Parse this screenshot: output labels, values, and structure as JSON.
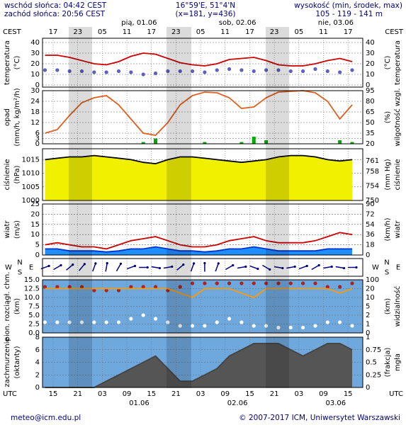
{
  "header": {
    "sunrise": "wschód słońca: 04:42 CEST",
    "sunset": "zachód słońca: 20:56 CEST",
    "coords": "16°59'E, 51°4'N",
    "grid": "(x=181, y=436)",
    "elevation_title": "wysokość (min, środek, max)",
    "elevation": "105 - 119 - 141 m"
  },
  "time_axis": {
    "xlim": [
      12.4,
      90.6
    ],
    "top_unit": "CEST",
    "bottom_unit": "UTC",
    "top_ticks": [
      {
        "value": 15,
        "label": "17"
      },
      {
        "value": 21,
        "label": "23"
      },
      {
        "value": 27,
        "label": "05"
      },
      {
        "value": 33,
        "label": "11"
      },
      {
        "value": 39,
        "label": "17"
      },
      {
        "value": 45,
        "label": "23"
      },
      {
        "value": 51,
        "label": "05"
      },
      {
        "value": 57,
        "label": "11"
      },
      {
        "value": 63,
        "label": "17"
      },
      {
        "value": 69,
        "label": "23"
      },
      {
        "value": 75,
        "label": "05"
      },
      {
        "value": 81,
        "label": "11"
      },
      {
        "value": 87,
        "label": "17"
      }
    ],
    "bottom_ticks": [
      15,
      21,
      {
        "value": 27,
        "label": "03"
      },
      {
        "value": 33,
        "label": "09"
      },
      {
        "value": 39,
        "label": "15"
      },
      {
        "value": 45,
        "label": "21"
      },
      {
        "value": 51,
        "label": "03"
      },
      {
        "value": 57,
        "label": "09"
      },
      {
        "value": 63,
        "label": "15"
      },
      {
        "value": 69,
        "label": "21"
      },
      {
        "value": 75,
        "label": "03"
      },
      {
        "value": 81,
        "label": "09"
      },
      {
        "value": 87,
        "label": "15"
      }
    ],
    "days": [
      {
        "x": 36,
        "top": "pią, 01.06",
        "bottom": "01.06"
      },
      {
        "x": 60,
        "top": "sob, 02.06",
        "bottom": "02.06"
      },
      {
        "x": 84,
        "top": "nie, 03.06",
        "bottom": "03.06"
      }
    ]
  },
  "chart_data": [
    {
      "type": "line",
      "ylabel": [
        "temperatura",
        "(°C)"
      ],
      "y2label": [
        "(°C)",
        "temperatura"
      ],
      "background": "#ffffff",
      "ylim": [
        -2,
        44
      ],
      "yticks": [
        0,
        10,
        20,
        30,
        40
      ],
      "y2lim": [
        -2,
        44
      ],
      "y2ticks": [
        0,
        10,
        20,
        30,
        40
      ],
      "x": [
        13,
        16,
        19,
        22,
        25,
        28,
        31,
        34,
        37,
        40,
        43,
        46,
        49,
        52,
        55,
        58,
        61,
        64,
        67,
        70,
        73,
        76,
        79,
        82,
        85,
        88
      ],
      "series": [
        {
          "color": "#cc0000",
          "style": "line",
          "values": [
            28,
            28,
            26,
            23,
            20,
            19,
            22,
            27,
            30,
            29,
            25,
            21,
            19,
            18,
            20,
            24,
            25,
            26,
            23,
            19,
            18,
            18,
            20,
            23,
            25,
            22
          ]
        },
        {
          "color": "#6060c0",
          "style": "dots",
          "values": [
            14,
            14,
            13,
            13,
            12,
            12,
            13,
            12,
            10,
            11,
            13,
            13,
            13,
            12,
            14,
            15,
            14,
            13,
            14,
            14,
            13,
            13,
            15,
            13,
            12,
            14
          ]
        }
      ]
    },
    {
      "type": "line",
      "ylabel": [
        "opad",
        "(mm/h, kg/m²/h)"
      ],
      "y2label": [
        "(%)",
        "wilgotność wzgl."
      ],
      "background": "#ffffff",
      "y2color": "#cc4400",
      "ylim": [
        0,
        30
      ],
      "yticks": [
        0,
        3,
        6,
        12,
        18,
        24,
        30
      ],
      "y2lim": [
        20,
        95
      ],
      "y2ticks": [
        20,
        35,
        50,
        65,
        80,
        95
      ],
      "x": [
        13,
        16,
        19,
        22,
        25,
        28,
        31,
        34,
        37,
        40,
        43,
        46,
        49,
        52,
        55,
        58,
        61,
        64,
        67,
        70,
        73,
        76,
        79,
        82,
        85,
        88
      ],
      "series": [
        {
          "color": "#00aa00",
          "style": "bars",
          "values": [
            0,
            0,
            0,
            0,
            0,
            0,
            0,
            0,
            1,
            3,
            0,
            0,
            0,
            1,
            0,
            0,
            1,
            4,
            2,
            0,
            0,
            0,
            0,
            0,
            2,
            1
          ]
        },
        {
          "color": "#e06020",
          "style": "line",
          "axis": "y2",
          "values": [
            35,
            40,
            60,
            78,
            85,
            88,
            75,
            55,
            35,
            32,
            50,
            75,
            88,
            93,
            92,
            85,
            70,
            72,
            85,
            93,
            94,
            95,
            92,
            80,
            55,
            75
          ]
        }
      ]
    },
    {
      "type": "line",
      "ylabel": [
        "ciśnienie",
        "(hPa)"
      ],
      "y2label": [
        "(mm Hg)",
        "ciśnienie"
      ],
      "background": "#ffffff",
      "ylim": [
        1000,
        1019
      ],
      "yticks": [
        1000,
        1005,
        1010,
        1015
      ],
      "y2lim": [
        750,
        764.3
      ],
      "y2ticks": [
        750,
        754,
        758,
        761
      ],
      "x": [
        13,
        16,
        19,
        22,
        25,
        28,
        31,
        34,
        37,
        40,
        43,
        46,
        49,
        52,
        55,
        58,
        61,
        64,
        67,
        70,
        73,
        76,
        79,
        82,
        85,
        88
      ],
      "series": [
        {
          "color": "#000000",
          "fill": "#f0f000",
          "style": "area",
          "values": [
            1015,
            1015.5,
            1016,
            1016,
            1016.5,
            1016,
            1015.5,
            1015,
            1014,
            1013.5,
            1015,
            1016,
            1016,
            1015.5,
            1015,
            1014.5,
            1014,
            1014.5,
            1015,
            1016,
            1016.5,
            1016.5,
            1016,
            1015,
            1014.5,
            1015
          ]
        }
      ]
    },
    {
      "type": "line",
      "ylabel": [
        "wiatr",
        "(m/s)"
      ],
      "y2label": [
        "(km/h)",
        "wiatr"
      ],
      "background": "#ffffff",
      "ylim": [
        0,
        25
      ],
      "yticks": [
        0,
        5,
        10,
        15,
        20,
        25
      ],
      "y2lim": [
        0,
        90
      ],
      "y2ticks": [
        0,
        18,
        36,
        54,
        72,
        90
      ],
      "x": [
        13,
        16,
        19,
        22,
        25,
        28,
        31,
        34,
        37,
        40,
        43,
        46,
        49,
        52,
        55,
        58,
        61,
        64,
        67,
        70,
        73,
        76,
        79,
        82,
        85,
        88
      ],
      "series": [
        {
          "color": "#0033cc",
          "fill": "#1f8fff",
          "style": "area",
          "values": [
            3,
            3,
            2,
            2,
            2,
            1.5,
            2,
            3,
            3,
            4,
            3,
            2,
            2,
            1.5,
            2,
            3,
            3,
            4,
            3,
            2,
            2,
            2,
            2,
            3,
            3,
            3
          ]
        },
        {
          "color": "#cc0000",
          "style": "line",
          "values": [
            5,
            6,
            5,
            4,
            4,
            3,
            5,
            7,
            8,
            9,
            7,
            5,
            4,
            4,
            5,
            7,
            8,
            9,
            7,
            6,
            6,
            6,
            7,
            9,
            11,
            10
          ]
        }
      ]
    },
    {
      "type": "wind_direction",
      "compass": [
        "W",
        "N",
        "E",
        "S"
      ],
      "color": "#000080",
      "x": [
        13,
        16,
        19,
        22,
        25,
        28,
        31,
        34,
        37,
        40,
        43,
        46,
        49,
        52,
        55,
        58,
        61,
        64,
        67,
        70,
        73,
        76,
        79,
        82,
        85,
        88
      ],
      "values": [
        250,
        240,
        230,
        220,
        200,
        190,
        210,
        250,
        270,
        280,
        260,
        230,
        200,
        180,
        200,
        240,
        260,
        290,
        300,
        280,
        260,
        250,
        240,
        260,
        280,
        270
      ]
    },
    {
      "type": "line",
      "ylabel": [
        "pion. rozciągł. chm.",
        "(km)"
      ],
      "y2label": [
        "(km)",
        "widzialność"
      ],
      "background": "#6fa8dc",
      "y2color": "#cc5500",
      "ylim": [
        0,
        15
      ],
      "yticks": [
        {
          "value": 0,
          "label": "0.0"
        },
        2.5,
        {
          "value": 5,
          "label": "5.0"
        },
        7.5,
        {
          "value": 10,
          "label": "10.0"
        },
        12.5,
        {
          "value": 15,
          "label": "15.0"
        }
      ],
      "y2scale": "piecewise",
      "y2ticks": [
        0,
        1,
        2,
        5,
        10,
        20,
        100
      ],
      "x": [
        13,
        16,
        19,
        22,
        25,
        28,
        31,
        34,
        37,
        40,
        43,
        46,
        49,
        52,
        55,
        58,
        61,
        64,
        67,
        70,
        73,
        76,
        79,
        82,
        85,
        88
      ],
      "series": [
        {
          "color": "#aa2222",
          "style": "dots",
          "values": [
            13,
            13,
            13,
            13,
            12,
            12,
            12,
            13,
            13,
            13,
            12,
            13,
            14,
            14,
            14,
            14,
            14,
            14,
            14,
            14,
            14,
            14,
            14,
            13,
            13,
            14
          ]
        },
        {
          "color": "#ffffff",
          "style": "dots",
          "values": [
            3,
            3,
            3,
            3,
            3,
            3,
            3,
            4,
            5,
            4,
            3,
            2,
            2,
            2,
            3,
            4,
            3,
            2,
            2,
            1.5,
            1.5,
            1.5,
            2,
            3,
            3,
            2
          ]
        },
        {
          "color": "#ff9900",
          "style": "line",
          "axis": "y2",
          "values": [
            20,
            20,
            20,
            20,
            20,
            20,
            20,
            20,
            20,
            20,
            20,
            15,
            10,
            20,
            20,
            20,
            15,
            10,
            20,
            20,
            20,
            20,
            20,
            20,
            15,
            20
          ]
        }
      ]
    },
    {
      "type": "line",
      "ylabel": [
        "zachmurzenie",
        "(oktanty)"
      ],
      "y2label": [
        "(frakcja)",
        "mgła"
      ],
      "background": "#6fa8dc",
      "y2color": "#cc5500",
      "ylim": [
        0,
        8
      ],
      "yticks": [
        0,
        2,
        4,
        6,
        8
      ],
      "y2lim": [
        0,
        1
      ],
      "y2ticks": [
        0,
        0.25,
        0.5,
        0.75,
        1
      ],
      "x": [
        13,
        16,
        19,
        22,
        25,
        28,
        31,
        34,
        37,
        40,
        43,
        46,
        49,
        52,
        55,
        58,
        61,
        64,
        67,
        70,
        73,
        76,
        79,
        82,
        85,
        88
      ],
      "series": [
        {
          "color": "#444444",
          "fill": "#555555",
          "style": "area",
          "values": [
            0,
            0,
            0,
            0,
            0,
            1,
            2,
            3,
            4,
            5,
            3,
            1,
            1,
            2,
            3,
            5,
            6,
            7,
            7,
            7,
            6,
            5,
            6,
            7,
            7,
            6
          ]
        }
      ]
    }
  ],
  "footer": {
    "email": "meteo@icm.edu.pl",
    "copyright": "© 2007-2017 ICM, Uniwersytet Warszawski"
  }
}
